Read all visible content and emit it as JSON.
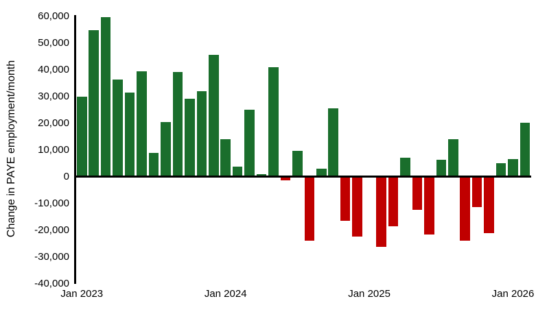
{
  "chart_data": {
    "type": "bar",
    "title": "",
    "ylabel": "Change in PAYE employment/month",
    "xlabel": "",
    "ylim": [
      -40000,
      60000
    ],
    "ytick_interval": 10000,
    "ytick_labels": [
      "60,000",
      "50,000",
      "40,000",
      "30,000",
      "20,000",
      "10,000",
      "0",
      "-10,000",
      "-20,000",
      "-30,000",
      "-40,000"
    ],
    "ytick_values": [
      60000,
      50000,
      40000,
      30000,
      20000,
      10000,
      0,
      -10000,
      -20000,
      -30000,
      -40000
    ],
    "xticks": [
      {
        "label": "Jan 2023",
        "month_index": 0
      },
      {
        "label": "Jan 2024",
        "month_index": 12
      },
      {
        "label": "Jan 2025",
        "month_index": 24
      },
      {
        "label": "Jan 2026",
        "month_index": 36
      }
    ],
    "grid": false,
    "legend": null,
    "colors": {
      "positive": "#1a6e2c",
      "negative": "#c00000",
      "axis": "#000000",
      "background": "#ffffff"
    },
    "categories": [
      "Jan 2023",
      "Feb 2023",
      "Mar 2023",
      "Apr 2023",
      "May 2023",
      "Jun 2023",
      "Jul 2023",
      "Aug 2023",
      "Sep 2023",
      "Oct 2023",
      "Nov 2023",
      "Dec 2023",
      "Jan 2024",
      "Feb 2024",
      "Mar 2024",
      "Apr 2024",
      "May 2024",
      "Jun 2024",
      "Jul 2024",
      "Aug 2024",
      "Sep 2024",
      "Oct 2024",
      "Nov 2024",
      "Dec 2024",
      "Jan 2025",
      "Feb 2025",
      "Mar 2025",
      "Apr 2025",
      "May 2025",
      "Jun 2025",
      "Jul 2025",
      "Aug 2025",
      "Sep 2025",
      "Oct 2025",
      "Nov 2025",
      "Dec 2025",
      "Jan 2026",
      "Feb 2026"
    ],
    "values": [
      30000,
      54800,
      59500,
      36300,
      31400,
      39400,
      8800,
      20500,
      39200,
      29200,
      31800,
      45600,
      13900,
      3600,
      24900,
      800,
      41000,
      -1300,
      9700,
      -23900,
      2900,
      25600,
      -16600,
      -22500,
      0,
      -26200,
      -18700,
      7100,
      -12400,
      -21600,
      6200,
      13900,
      -24000,
      -11300,
      -21200,
      5100,
      6600,
      20200
    ]
  }
}
